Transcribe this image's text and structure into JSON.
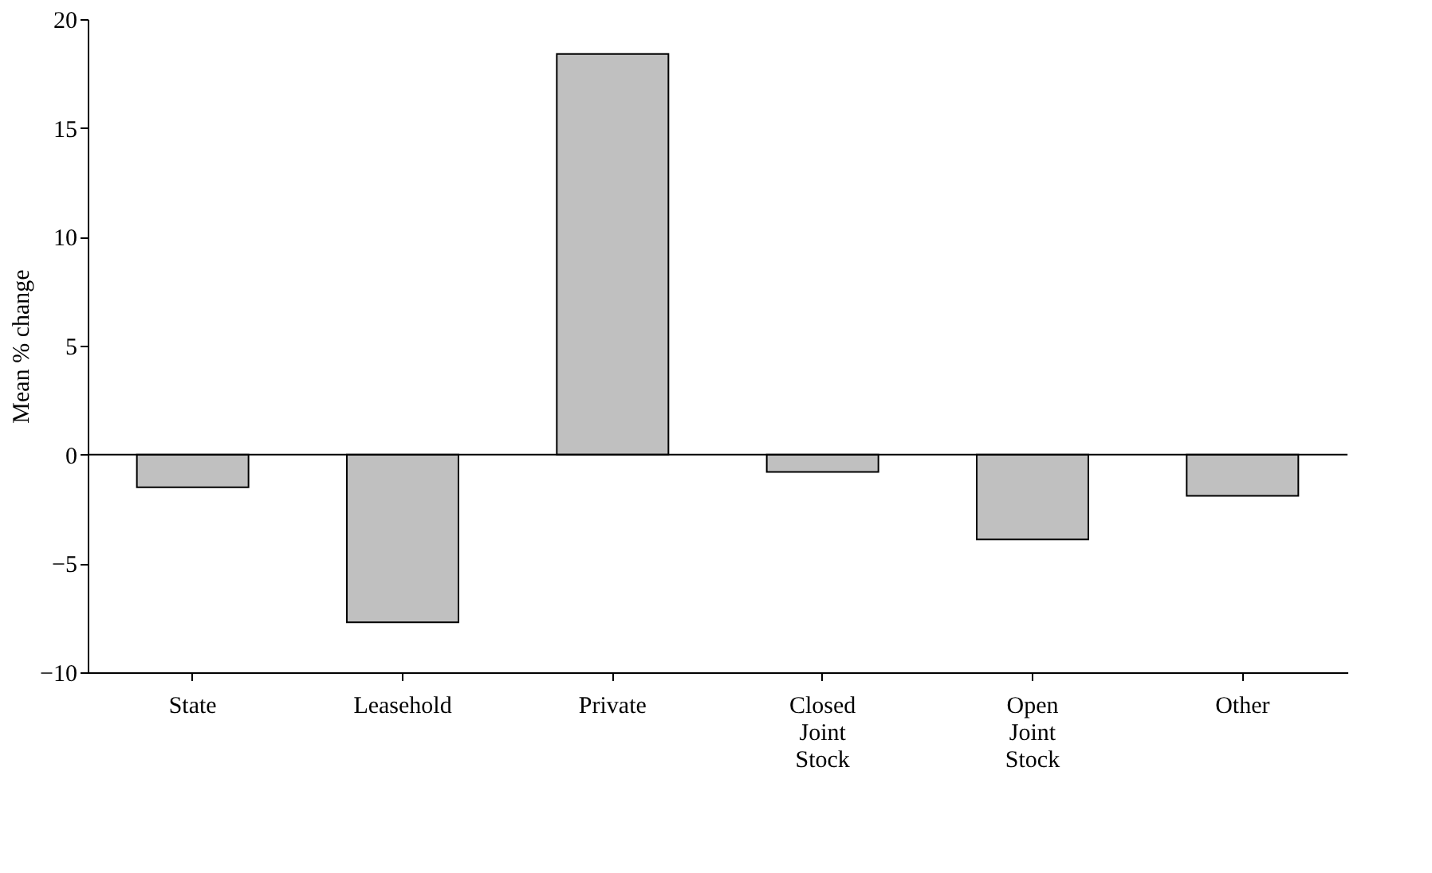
{
  "chart_data": {
    "type": "bar",
    "ylabel": "Mean % change",
    "categories": [
      "State",
      "Leasehold",
      "Private",
      "Closed Joint Stock",
      "Open Joint Stock",
      "Other"
    ],
    "values": [
      -1.5,
      -7.7,
      18.4,
      -0.8,
      -3.9,
      -1.9
    ],
    "color": "#c0c0c0",
    "ylim": [
      -10,
      20
    ],
    "yticks": [
      -10,
      -5,
      0,
      5,
      10,
      15,
      20
    ],
    "grid": false,
    "ref_lines": [
      {
        "axis": "y",
        "value": 0,
        "color": "#000000"
      }
    ]
  }
}
